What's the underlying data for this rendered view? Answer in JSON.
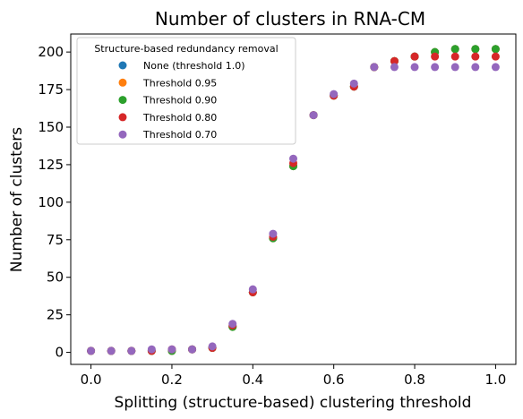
{
  "chart_data": {
    "type": "scatter",
    "title": "Number of clusters in RNA-CM",
    "xlabel": "Splitting (structure-based) clustering threshold",
    "ylabel": "Number of clusters",
    "xlim": [
      -0.05,
      1.05
    ],
    "ylim": [
      -8,
      212
    ],
    "xticks": [
      0.0,
      0.2,
      0.4,
      0.6,
      0.8,
      1.0
    ],
    "xtick_labels": [
      "0.0",
      "0.2",
      "0.4",
      "0.6",
      "0.8",
      "1.0"
    ],
    "yticks": [
      0,
      25,
      50,
      75,
      100,
      125,
      150,
      175,
      200
    ],
    "ytick_labels": [
      "0",
      "25",
      "50",
      "75",
      "100",
      "125",
      "150",
      "175",
      "200"
    ],
    "grid": false,
    "legend_title": "Structure-based redundancy removal",
    "legend_position": "upper-left",
    "x": [
      0.0,
      0.05,
      0.1,
      0.15,
      0.2,
      0.25,
      0.3,
      0.35,
      0.4,
      0.45,
      0.5,
      0.55,
      0.6,
      0.65,
      0.7,
      0.75,
      0.8,
      0.85,
      0.9,
      0.95,
      1.0
    ],
    "series": [
      {
        "name": "None (threshold 1.0)",
        "color": "#1f77b4",
        "values": [
          1,
          1,
          1,
          1,
          1,
          2,
          3,
          17,
          40,
          76,
          124,
          158,
          171,
          177,
          190,
          194,
          197,
          200,
          202,
          202,
          202
        ]
      },
      {
        "name": "Threshold 0.95",
        "color": "#ff7f0e",
        "values": [
          1,
          1,
          1,
          1,
          1,
          2,
          3,
          17,
          40,
          76,
          124,
          158,
          171,
          177,
          190,
          194,
          197,
          200,
          202,
          202,
          202
        ]
      },
      {
        "name": "Threshold 0.90",
        "color": "#2ca02c",
        "values": [
          1,
          1,
          1,
          1,
          1,
          2,
          3,
          17,
          40,
          76,
          124,
          158,
          171,
          177,
          190,
          194,
          197,
          200,
          202,
          202,
          202
        ]
      },
      {
        "name": "Threshold 0.80",
        "color": "#d62728",
        "values": [
          1,
          1,
          1,
          1,
          2,
          2,
          3,
          18,
          40,
          77,
          126,
          158,
          171,
          177,
          190,
          194,
          197,
          197,
          197,
          197,
          197
        ]
      },
      {
        "name": "Threshold 0.70",
        "color": "#9467bd",
        "values": [
          1,
          1,
          1,
          2,
          2,
          2,
          4,
          19,
          42,
          79,
          129,
          158,
          172,
          179,
          190,
          190,
          190,
          190,
          190,
          190,
          190
        ]
      }
    ]
  }
}
